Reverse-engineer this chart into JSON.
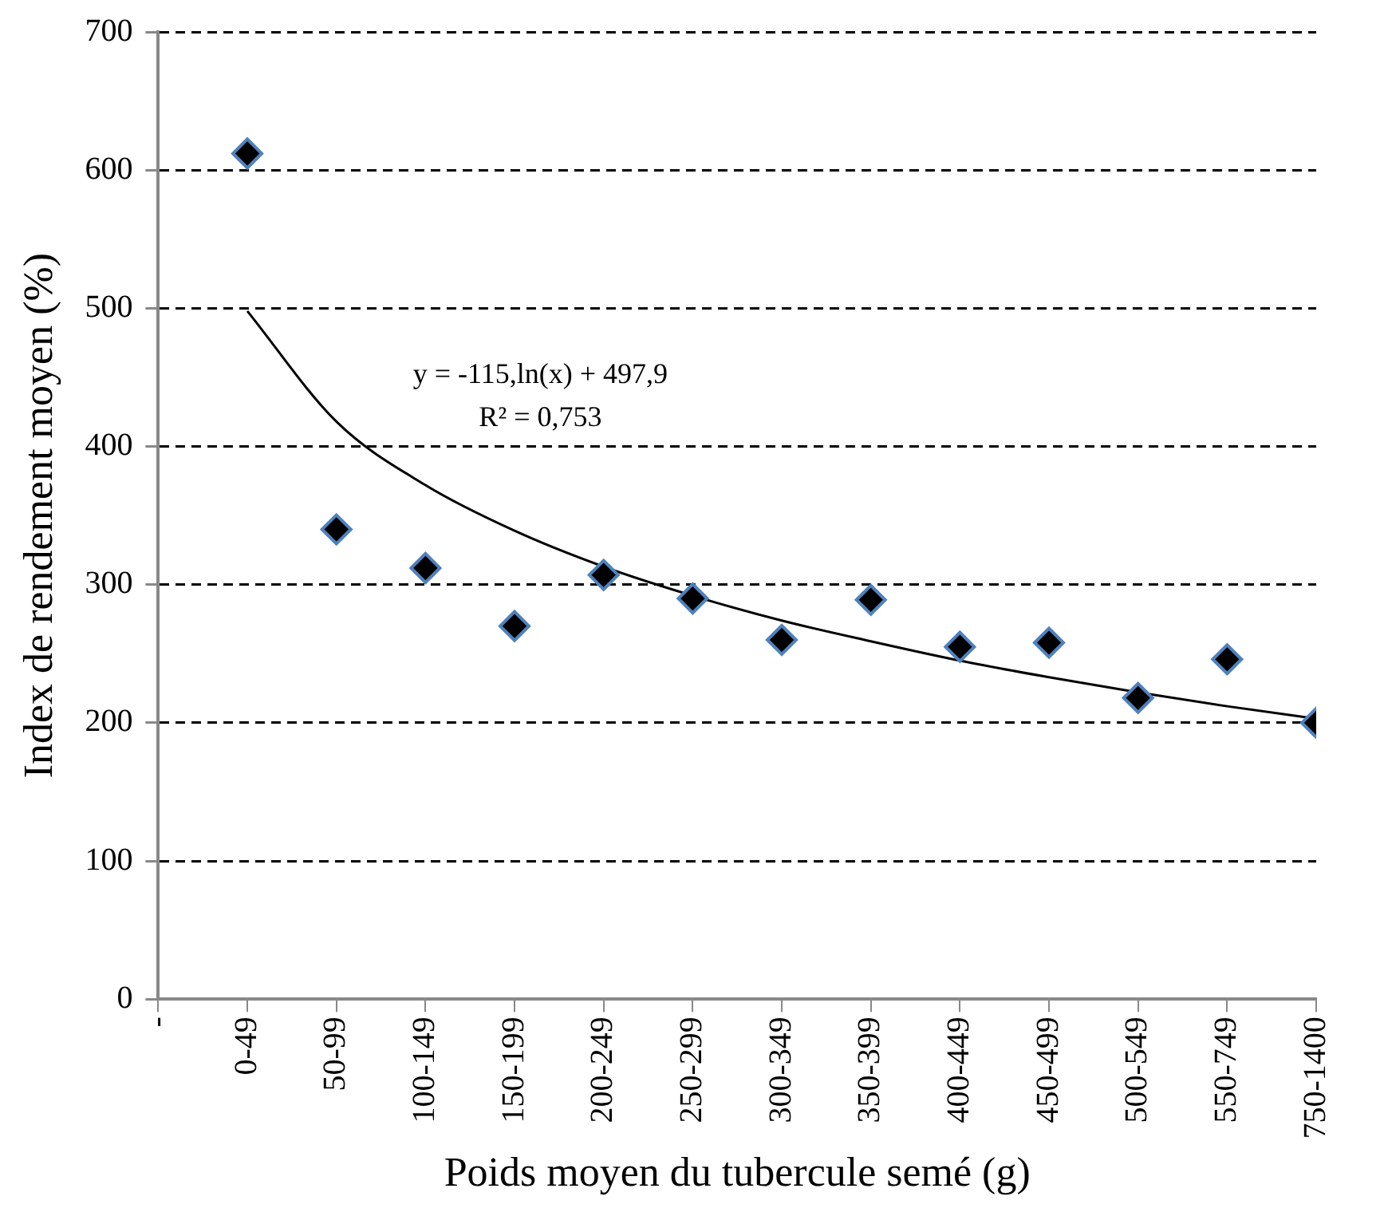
{
  "chart_data": {
    "type": "scatter",
    "xlabel": "Poids moyen du tubercule semé (g)",
    "ylabel": "Index de rendement moyen (%)",
    "categories": [
      "-",
      "0-49",
      "50-99",
      "100-149",
      "150-199",
      "200-249",
      "250-299",
      "300-349",
      "350-399",
      "400-449",
      "450-499",
      "500-549",
      "550-749",
      "750-1400"
    ],
    "series": [
      {
        "color": "#000000",
        "marker": "diamond",
        "values": [
          null,
          612,
          340,
          312,
          270,
          307,
          290,
          260,
          289,
          255,
          258,
          218,
          246,
          200
        ]
      },
      {
        "type": "line",
        "color": "#000000",
        "marker": "none",
        "line_style": "solid",
        "x": [
          "0-49",
          "50-99",
          "100-149",
          "150-199",
          "200-249",
          "250-299",
          "300-349",
          "350-399",
          "400-449",
          "450-499",
          "500-549",
          "550-749",
          "750-1400"
        ],
        "values": [
          498,
          418,
          372,
          339,
          313,
          292,
          274,
          259,
          245,
          233,
          222,
          212,
          203
        ]
      }
    ],
    "ylim": [
      0,
      700
    ],
    "yticks": [
      0,
      100,
      200,
      300,
      400,
      500,
      600,
      700
    ],
    "grid": "y",
    "legend": false,
    "annotations": [
      "y = -115,ln(x) + 497,9",
      "R² = 0,753"
    ]
  }
}
